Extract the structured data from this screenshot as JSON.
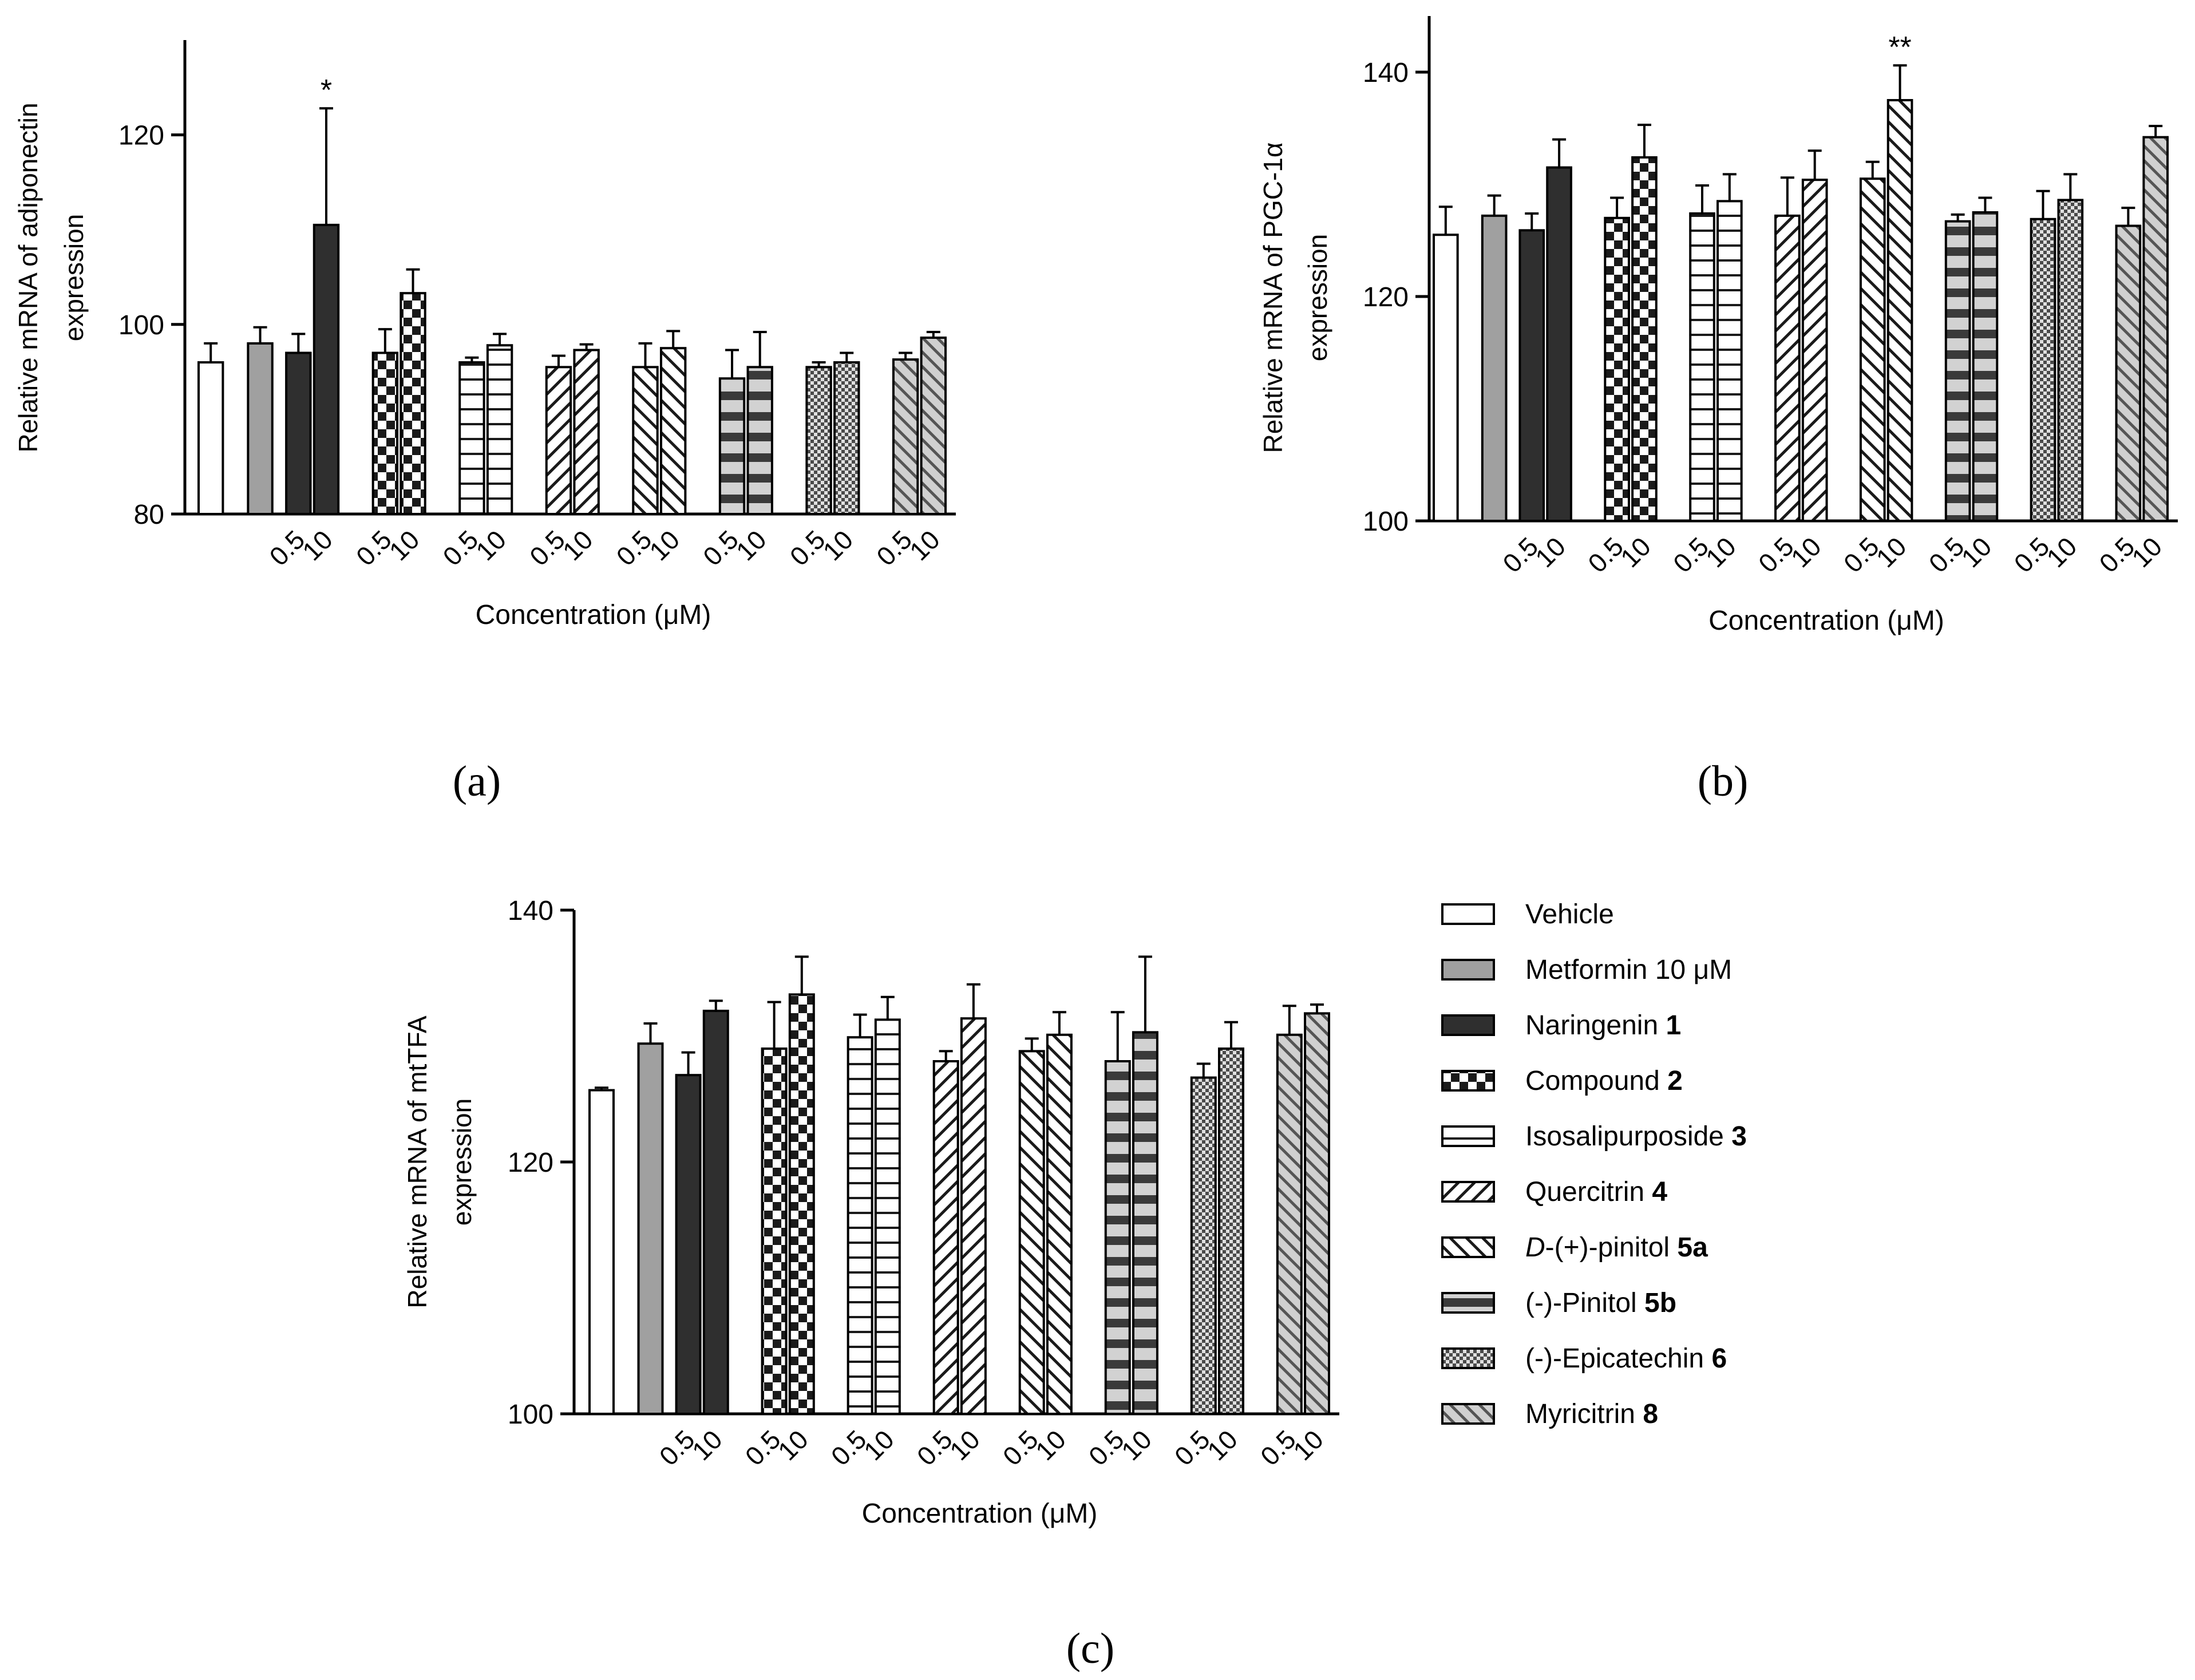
{
  "chart_data": [
    {
      "panel": "(a)",
      "type": "bar",
      "ylabel": [
        "Relative mRNA of adiponectin",
        "expression"
      ],
      "xlabel": "Concentration (μM)",
      "ylim": [
        80,
        130
      ],
      "yticks": [
        80,
        100,
        120
      ],
      "categories": [
        "",
        "",
        "0.5",
        "10",
        "0.5",
        "10",
        "0.5",
        "10",
        "0.5",
        "10",
        "0.5",
        "10",
        "0.5",
        "10",
        "0.5",
        "10",
        "0.5",
        "10"
      ],
      "legend_groups": [
        "Vehicle",
        "Metformin 10 μM",
        "Naringenin 1",
        "Naringenin 1",
        "Compound 2",
        "Compound 2",
        "Isosalipurposide 3",
        "Isosalipurposide 3",
        "Quercitrin 4",
        "Quercitrin 4",
        "D-(+)-pinitol 5a",
        "D-(+)-pinitol 5a",
        "(-)-Pinitol 5b",
        "(-)-Pinitol 5b",
        "(-)-Epicatechin 6",
        "(-)-Epicatechin 6",
        "Myricitrin 8",
        "Myricitrin 8"
      ],
      "values": [
        96,
        98,
        97,
        110.5,
        97,
        103.3,
        96,
        97.8,
        95.5,
        97.3,
        95.5,
        97.5,
        94.3,
        95.5,
        95.5,
        96,
        96.3,
        98.6
      ],
      "errors": [
        2,
        1.7,
        2,
        12.3,
        2.5,
        2.5,
        0.5,
        1.2,
        1.2,
        0.6,
        2.5,
        1.8,
        3,
        3.7,
        0.5,
        1,
        0.7,
        0.6
      ],
      "annotations": [
        {
          "index": 3,
          "text": "*"
        }
      ]
    },
    {
      "panel": "(b)",
      "type": "bar",
      "ylabel": [
        "Relative mRNA of PGC-1α",
        "expression"
      ],
      "xlabel": "Concentration (μM)",
      "ylim": [
        100,
        145
      ],
      "yticks": [
        100,
        120,
        140
      ],
      "categories": [
        "",
        "",
        "0.5",
        "10",
        "0.5",
        "10",
        "0.5",
        "10",
        "0.5",
        "10",
        "0.5",
        "10",
        "0.5",
        "10",
        "0.5",
        "10",
        "0.5",
        "10"
      ],
      "legend_groups": [
        "Vehicle",
        "Metformin 10 μM",
        "Naringenin 1",
        "Naringenin 1",
        "Compound 2",
        "Compound 2",
        "Isosalipurposide 3",
        "Isosalipurposide 3",
        "Quercitrin 4",
        "Quercitrin 4",
        "D-(+)-pinitol 5a",
        "D-(+)-pinitol 5a",
        "(-)-Pinitol 5b",
        "(-)-Pinitol 5b",
        "(-)-Epicatechin 6",
        "(-)-Epicatechin 6",
        "Myricitrin 8",
        "Myricitrin 8"
      ],
      "values": [
        125.5,
        127.2,
        125.9,
        131.5,
        127,
        132.4,
        127.4,
        128.5,
        127.2,
        130.4,
        130.5,
        137.5,
        126.7,
        127.5,
        126.9,
        128.6,
        126.3,
        134.2
      ],
      "errors": [
        2.5,
        1.8,
        1.5,
        2.5,
        1.8,
        2.9,
        2.5,
        2.4,
        3.4,
        2.6,
        1.5,
        3.1,
        0.6,
        1.3,
        2.5,
        2.3,
        1.6,
        1
      ],
      "annotations": [
        {
          "index": 11,
          "text": "**"
        }
      ]
    },
    {
      "panel": "(c)",
      "type": "bar",
      "ylabel": [
        "Relative mRNA of mtTFA",
        "expression"
      ],
      "xlabel": "Concentration (μM)",
      "ylim": [
        100,
        140
      ],
      "yticks": [
        100,
        120,
        140
      ],
      "categories": [
        "",
        "",
        "0.5",
        "10",
        "0.5",
        "10",
        "0.5",
        "10",
        "0.5",
        "10",
        "0.5",
        "10",
        "0.5",
        "10",
        "0.5",
        "10",
        "0.5",
        "10"
      ],
      "legend_groups": [
        "Vehicle",
        "Metformin 10 μM",
        "Naringenin 1",
        "Naringenin 1",
        "Compound 2",
        "Compound 2",
        "Isosalipurposide 3",
        "Isosalipurposide 3",
        "Quercitrin 4",
        "Quercitrin 4",
        "D-(+)-pinitol 5a",
        "D-(+)-pinitol 5a",
        "(-)-Pinitol 5b",
        "(-)-Pinitol 5b",
        "(-)-Epicatechin 6",
        "(-)-Epicatechin 6",
        "Myricitrin 8",
        "Myricitrin 8"
      ],
      "values": [
        125.7,
        129.4,
        126.9,
        132,
        129,
        133.3,
        129.9,
        131.3,
        128,
        131.4,
        128.8,
        130.1,
        128,
        130.3,
        126.7,
        129,
        130.1,
        131.8
      ],
      "errors": [
        0.2,
        1.6,
        1.8,
        0.8,
        3.7,
        3,
        1.8,
        1.8,
        0.8,
        2.7,
        1,
        1.8,
        3.9,
        6,
        1.1,
        2.1,
        2.3,
        0.7
      ],
      "annotations": []
    }
  ],
  "legend": [
    {
      "prefix": "Vehicle",
      "italic": "",
      "rest": "",
      "bold": "",
      "pattern": "white"
    },
    {
      "prefix": "Metformin 10 μM",
      "italic": "",
      "rest": "",
      "bold": "",
      "pattern": "gray"
    },
    {
      "prefix": "Naringenin ",
      "italic": "",
      "rest": "",
      "bold": "1",
      "pattern": "dark"
    },
    {
      "prefix": "Compound ",
      "italic": "",
      "rest": "",
      "bold": "2",
      "pattern": "checker"
    },
    {
      "prefix": "Isosalipurposide ",
      "italic": "",
      "rest": "",
      "bold": "3",
      "pattern": "hstripe"
    },
    {
      "prefix": "Quercitrin ",
      "italic": "",
      "rest": "",
      "bold": "4",
      "pattern": "diag-right"
    },
    {
      "prefix": "",
      "italic": "D",
      "rest": "-(+)-pinitol ",
      "bold": "5a",
      "pattern": "diag-left"
    },
    {
      "prefix": "(-)-Pinitol ",
      "italic": "",
      "rest": "",
      "bold": "5b",
      "pattern": "thick-hstripe"
    },
    {
      "prefix": "(-)-Epicatechin ",
      "italic": "",
      "rest": "",
      "bold": "6",
      "pattern": "dense-checker"
    },
    {
      "prefix": "Myricitrin ",
      "italic": "",
      "rest": "",
      "bold": "8",
      "pattern": "gray-diag"
    }
  ],
  "bar_patterns": [
    "white",
    "gray",
    "dark",
    "dark",
    "checker",
    "checker",
    "hstripe",
    "hstripe",
    "diag-right",
    "diag-right",
    "diag-left",
    "diag-left",
    "thick-hstripe",
    "thick-hstripe",
    "dense-checker",
    "dense-checker",
    "gray-diag",
    "gray-diag"
  ]
}
